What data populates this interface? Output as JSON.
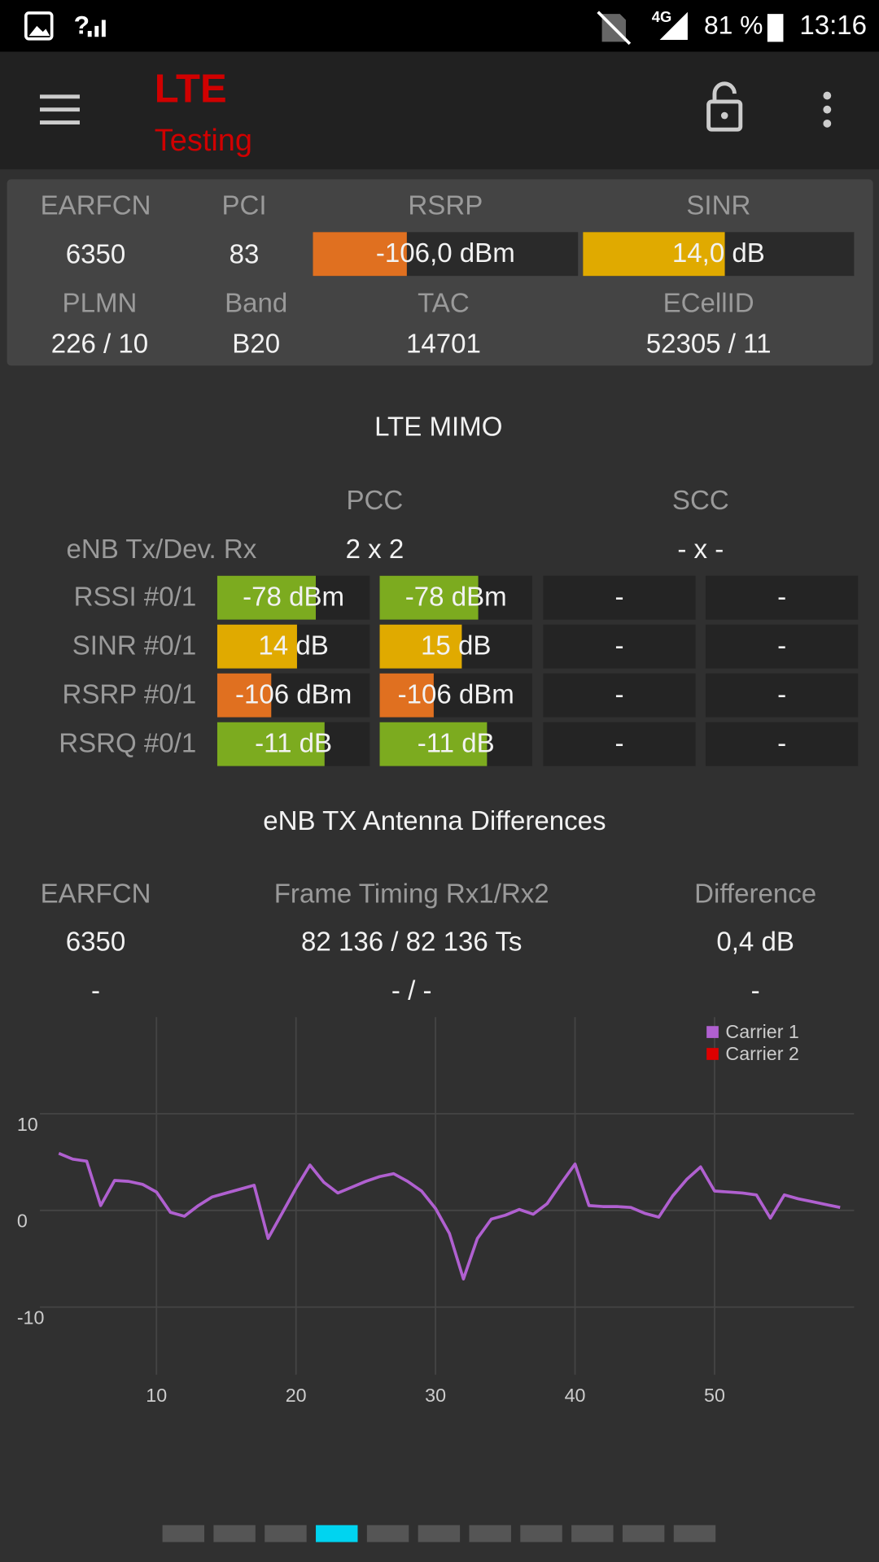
{
  "status": {
    "network": "?",
    "tech": "4G",
    "battery": "81 %",
    "time": "13:16"
  },
  "app_bar": {
    "title": "LTE",
    "subtitle": "Testing"
  },
  "cell_info": {
    "row1": [
      {
        "label": "EARFCN",
        "value": "6350"
      },
      {
        "label": "PCI",
        "value": "83"
      },
      {
        "label": "RSRP",
        "value": -106,
        "value_label": "-106,0 dBm",
        "range": [
          -140,
          -44
        ],
        "color": "#e07020"
      },
      {
        "label": "SINR",
        "value": 14,
        "value_label": "14,0 dB",
        "range": [
          -20,
          45
        ],
        "color": "#e0aa00"
      }
    ],
    "row2": [
      {
        "label": "PLMN",
        "value": "226 / 10"
      },
      {
        "label": "Band",
        "value": "B20"
      },
      {
        "label": "TAC",
        "value": "14701"
      },
      {
        "label": "ECellID",
        "value": "52305 / 11"
      }
    ]
  },
  "mimo": {
    "title": "LTE MIMO",
    "columns": [
      "PCC",
      "SCC"
    ],
    "tx_rx": {
      "label": "eNB Tx/Dev. Rx",
      "values": [
        "2 x 2",
        "- x -"
      ]
    },
    "rows": [
      {
        "label": "RSSI #0/1",
        "range": [
          -120,
          -55
        ],
        "color": "#7cab1f",
        "cells": [
          {
            "value": -78,
            "value_label": "-78 dBm"
          },
          {
            "value": -78,
            "value_label": "-78 dBm"
          },
          "-",
          "-"
        ]
      },
      {
        "label": "SINR #0/1",
        "range": [
          -20,
          45
        ],
        "color": "#e0aa00",
        "cells": [
          {
            "value": 14,
            "value_label": "14 dB"
          },
          {
            "value": 15,
            "value_label": "15 dB"
          },
          "-",
          "-"
        ]
      },
      {
        "label": "RSRP #0/1",
        "range": [
          -140,
          -44
        ],
        "color": "#e07020",
        "cells": [
          {
            "value": -106,
            "value_label": "-106 dBm"
          },
          {
            "value": -106,
            "value_label": "-106 dBm"
          },
          "-",
          "-"
        ]
      },
      {
        "label": "RSRQ #0/1",
        "range": [
          -30,
          -3
        ],
        "color": "#7cab1f",
        "cells": [
          {
            "value": -11,
            "value_label": "-11 dB"
          },
          {
            "value": -11,
            "value_label": "-11 dB"
          },
          "-",
          "-"
        ]
      }
    ]
  },
  "antenna": {
    "title": "eNB TX Antenna Differences",
    "headers": [
      "EARFCN",
      "Frame Timing Rx1/Rx2",
      "Difference"
    ],
    "rows": [
      [
        "6350",
        "82 136 / 82 136 Ts",
        "0,4 dB"
      ],
      [
        "-",
        "- / -",
        "-"
      ]
    ]
  },
  "chart_data": {
    "type": "line",
    "x": [
      3,
      4,
      5,
      6,
      7,
      8,
      9,
      10,
      11,
      12,
      13,
      14,
      15,
      16,
      17,
      18,
      19,
      20,
      21,
      22,
      23,
      24,
      25,
      26,
      27,
      28,
      29,
      30,
      31,
      32,
      33,
      34,
      35,
      36,
      37,
      38,
      39,
      40,
      41,
      42,
      43,
      44,
      45,
      46,
      47,
      48,
      49,
      50,
      51,
      52,
      53,
      54,
      55,
      56,
      57,
      58,
      59
    ],
    "series": [
      {
        "name": "Carrier 1",
        "color": "#b060d0",
        "values": [
          5.9,
          5.3,
          5.1,
          0.5,
          3.1,
          3.0,
          2.7,
          1.9,
          -0.2,
          -0.6,
          0.5,
          1.4,
          1.8,
          2.2,
          2.6,
          -2.9,
          -0.3,
          2.3,
          4.7,
          2.9,
          1.8,
          2.4,
          3.0,
          3.5,
          3.8,
          3.0,
          2.0,
          0.2,
          -2.4,
          -7.1,
          -2.9,
          -0.9,
          -0.5,
          0.1,
          -0.4,
          0.7,
          2.8,
          4.8,
          0.5,
          0.4,
          0.4,
          0.3,
          -0.3,
          -0.7,
          1.5,
          3.2,
          4.5,
          2.0,
          1.9,
          1.8,
          1.6,
          -0.8,
          1.6,
          1.2,
          0.9,
          0.6,
          0.3
        ]
      },
      {
        "name": "Carrier 2",
        "color": "#dd0000",
        "values": [
          null,
          null,
          null,
          null,
          null,
          null,
          null,
          null,
          null,
          null,
          null,
          null,
          null,
          null,
          null,
          null,
          null,
          null,
          null,
          null,
          null,
          null,
          null,
          null,
          null,
          null,
          null,
          null,
          null,
          null,
          null,
          null,
          null,
          null,
          null,
          null,
          null,
          null,
          null,
          null,
          null,
          null,
          null,
          null,
          null,
          null,
          null,
          null,
          null,
          null,
          null,
          null,
          null,
          null,
          null,
          null,
          null
        ]
      }
    ],
    "xlim": [
      0,
      60
    ],
    "ylim": [
      -17,
      20
    ],
    "xticks": [
      10,
      20,
      30,
      40,
      50
    ],
    "yticks": [
      -10,
      0,
      10
    ],
    "grid": true,
    "legend": "top-right"
  },
  "pager": {
    "count": 11,
    "active": 3
  }
}
